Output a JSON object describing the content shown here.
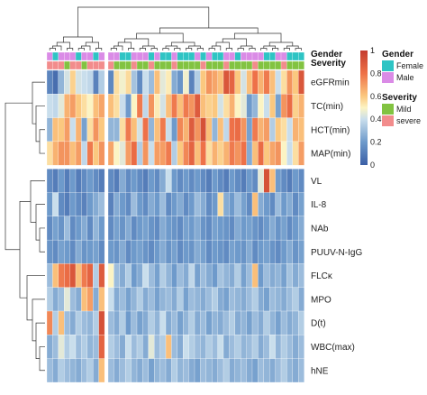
{
  "chart_data": {
    "type": "heatmap",
    "rows": [
      "eGFRmin",
      "TC(min)",
      "HCT(min)",
      "MAP(min)",
      "VL",
      "IL-8",
      "NAb",
      "PUUV-N-IgG",
      "FLCκ",
      "MPO",
      "D(t)",
      "WBC(max)",
      "hNE"
    ],
    "n_columns": 44,
    "column_split_after": 10,
    "row_split_after": 4,
    "value_range": [
      0,
      1
    ],
    "color_scale": {
      "stops": [
        0,
        0.2,
        0.4,
        0.5,
        0.6,
        0.8,
        1
      ],
      "colors": [
        "#3B5FA6",
        "#6E9ACB",
        "#C9DEEC",
        "#FCF4C4",
        "#FBC87F",
        "#EE7148",
        "#C43C2E"
      ],
      "tick_labels": [
        "0",
        "0.2",
        "0.4",
        "0.6",
        "0.8",
        "1"
      ],
      "tick_values": [
        0,
        0.2,
        0.4,
        0.6,
        0.8,
        1
      ]
    },
    "annotations": [
      {
        "name": "Gender",
        "levels": [
          {
            "label": "Female",
            "color": "#2EC4C4"
          },
          {
            "label": "Male",
            "color": "#DA8BE6"
          }
        ],
        "values": [
          "Male",
          "Female",
          "Male",
          "Male",
          "Male",
          "Female",
          "Male",
          "Male",
          "Female",
          "Male",
          "Male",
          "Male",
          "Female",
          "Female",
          "Male",
          "Male",
          "Male",
          "Female",
          "Male",
          "Female",
          "Female",
          "Male",
          "Female",
          "Female",
          "Female",
          "Male",
          "Female",
          "Male",
          "Female",
          "Female",
          "Male",
          "Male",
          "Female",
          "Male",
          "Male",
          "Male",
          "Male",
          "Female",
          "Female",
          "Male",
          "Male",
          "Female",
          "Female",
          "Female"
        ]
      },
      {
        "name": "Severity",
        "levels": [
          {
            "label": "Mild",
            "color": "#82C341"
          },
          {
            "label": "severe",
            "color": "#F28C8C"
          }
        ],
        "values": [
          "severe",
          "severe",
          "severe",
          "Mild",
          "severe",
          "severe",
          "Mild",
          "severe",
          "severe",
          "severe",
          "severe",
          "Mild",
          "Mild",
          "Mild",
          "severe",
          "Mild",
          "Mild",
          "severe",
          "Mild",
          "Mild",
          "Mild",
          "severe",
          "Mild",
          "Mild",
          "Mild",
          "Mild",
          "severe",
          "Mild",
          "Mild",
          "Mild",
          "severe",
          "Mild",
          "Mild",
          "Mild",
          "Mild",
          "severe",
          "Mild",
          "Mild",
          "Mild",
          "Mild",
          "severe",
          "Mild",
          "Mild",
          "Mild"
        ]
      }
    ],
    "matrix": [
      [
        0.13,
        0.05,
        0.28,
        0.42,
        0.58,
        0.42,
        0.4,
        0.38,
        0.12,
        0.35,
        0.14,
        0.55,
        0.48,
        0.56,
        0.32,
        0.15,
        0.4,
        0.3,
        0.62,
        0.45,
        0.52,
        0.25,
        0.18,
        0.48,
        0.12,
        0.35,
        0.6,
        0.72,
        0.68,
        0.62,
        0.9,
        0.85,
        0.6,
        0.42,
        0.62,
        0.8,
        0.65,
        0.78,
        0.62,
        0.4,
        0.55,
        0.72,
        0.6,
        0.9
      ],
      [
        0.4,
        0.38,
        0.45,
        0.65,
        0.7,
        0.6,
        0.55,
        0.5,
        0.62,
        0.68,
        0.62,
        0.55,
        0.4,
        0.2,
        0.5,
        0.78,
        0.38,
        0.72,
        0.52,
        0.42,
        0.62,
        0.78,
        0.62,
        0.78,
        0.72,
        0.88,
        0.62,
        0.58,
        0.6,
        0.42,
        0.55,
        0.65,
        0.5,
        0.45,
        0.2,
        0.28,
        0.5,
        0.4,
        0.6,
        0.22,
        0.72,
        0.82,
        0.58,
        0.65
      ],
      [
        0.28,
        0.62,
        0.6,
        0.7,
        0.4,
        0.65,
        0.22,
        0.55,
        0.72,
        0.6,
        0.28,
        0.28,
        0.55,
        0.78,
        0.62,
        0.42,
        0.8,
        0.28,
        0.62,
        0.78,
        0.4,
        0.2,
        0.75,
        0.65,
        0.88,
        0.72,
        0.92,
        0.62,
        0.28,
        0.62,
        0.38,
        0.8,
        0.82,
        0.72,
        0.22,
        0.78,
        0.65,
        0.7,
        0.35,
        0.6,
        0.55,
        0.4,
        0.65,
        0.62
      ],
      [
        0.55,
        0.65,
        0.72,
        0.72,
        0.62,
        0.7,
        0.38,
        0.78,
        0.6,
        0.72,
        0.68,
        0.5,
        0.45,
        0.7,
        0.82,
        0.35,
        0.72,
        0.4,
        0.7,
        0.7,
        0.78,
        0.35,
        0.6,
        0.75,
        0.85,
        0.62,
        0.8,
        0.55,
        0.65,
        0.58,
        0.65,
        0.78,
        0.72,
        0.8,
        0.25,
        0.62,
        0.82,
        0.6,
        0.68,
        0.72,
        0.5,
        0.4,
        0.55,
        0.7
      ],
      [
        0.15,
        0.1,
        0.2,
        0.1,
        0.2,
        0.1,
        0.15,
        0.2,
        0.15,
        0.1,
        0.15,
        0.1,
        0.25,
        0.15,
        0.2,
        0.15,
        0.1,
        0.2,
        0.15,
        0.25,
        0.4,
        0.2,
        0.15,
        0.2,
        0.15,
        0.2,
        0.15,
        0.1,
        0.2,
        0.15,
        0.1,
        0.2,
        0.15,
        0.1,
        0.2,
        0.15,
        0.45,
        0.92,
        0.62,
        0.2,
        0.15,
        0.1,
        0.2,
        0.15
      ],
      [
        0.2,
        0.4,
        0.15,
        0.1,
        0.2,
        0.15,
        0.12,
        0.2,
        0.25,
        0.3,
        0.12,
        0.25,
        0.2,
        0.15,
        0.3,
        0.2,
        0.15,
        0.25,
        0.2,
        0.3,
        0.15,
        0.2,
        0.25,
        0.15,
        0.2,
        0.3,
        0.25,
        0.15,
        0.2,
        0.55,
        0.25,
        0.2,
        0.3,
        0.22,
        0.15,
        0.62,
        0.25,
        0.2,
        0.15,
        0.3,
        0.2,
        0.25,
        0.15,
        0.22
      ],
      [
        0.15,
        0.22,
        0.18,
        0.3,
        0.15,
        0.2,
        0.25,
        0.15,
        0.28,
        0.2,
        0.15,
        0.22,
        0.18,
        0.25,
        0.15,
        0.2,
        0.22,
        0.18,
        0.15,
        0.25,
        0.2,
        0.18,
        0.15,
        0.22,
        0.2,
        0.25,
        0.18,
        0.15,
        0.22,
        0.2,
        0.18,
        0.15,
        0.25,
        0.2,
        0.22,
        0.18,
        0.15,
        0.2,
        0.25,
        0.18,
        0.22,
        0.15,
        0.2,
        0.25
      ],
      [
        0.18,
        0.15,
        0.22,
        0.2,
        0.15,
        0.25,
        0.18,
        0.2,
        0.22,
        0.15,
        0.2,
        0.18,
        0.25,
        0.15,
        0.2,
        0.22,
        0.18,
        0.15,
        0.2,
        0.25,
        0.18,
        0.22,
        0.15,
        0.2,
        0.18,
        0.25,
        0.22,
        0.15,
        0.2,
        0.18,
        0.15,
        0.22,
        0.2,
        0.18,
        0.25,
        0.15,
        0.2,
        0.22,
        0.18,
        0.15,
        0.2,
        0.25,
        0.18,
        0.22
      ],
      [
        0.3,
        0.62,
        0.78,
        0.82,
        0.9,
        0.62,
        0.78,
        0.85,
        0.35,
        0.88,
        0.5,
        0.3,
        0.25,
        0.35,
        0.2,
        0.25,
        0.4,
        0.3,
        0.22,
        0.35,
        0.28,
        0.2,
        0.3,
        0.25,
        0.38,
        0.22,
        0.3,
        0.25,
        0.2,
        0.32,
        0.28,
        0.25,
        0.35,
        0.22,
        0.3,
        0.62,
        0.2,
        0.3,
        0.25,
        0.28,
        0.22,
        0.32,
        0.25,
        0.3
      ],
      [
        0.35,
        0.25,
        0.3,
        0.45,
        0.3,
        0.25,
        0.62,
        0.7,
        0.25,
        0.62,
        0.4,
        0.25,
        0.3,
        0.22,
        0.28,
        0.35,
        0.25,
        0.3,
        0.22,
        0.28,
        0.3,
        0.25,
        0.35,
        0.22,
        0.3,
        0.28,
        0.25,
        0.3,
        0.35,
        0.25,
        0.22,
        0.3,
        0.28,
        0.25,
        0.3,
        0.35,
        0.25,
        0.22,
        0.3,
        0.28,
        0.25,
        0.3,
        0.35,
        0.25
      ],
      [
        0.75,
        0.35,
        0.62,
        0.3,
        0.25,
        0.35,
        0.3,
        0.28,
        0.35,
        0.92,
        0.3,
        0.25,
        0.35,
        0.2,
        0.3,
        0.22,
        0.25,
        0.35,
        0.28,
        0.4,
        0.25,
        0.3,
        0.22,
        0.28,
        0.35,
        0.25,
        0.3,
        0.22,
        0.28,
        0.25,
        0.3,
        0.35,
        0.25,
        0.28,
        0.22,
        0.3,
        0.25,
        0.35,
        0.28,
        0.22,
        0.3,
        0.25,
        0.28,
        0.35
      ],
      [
        0.25,
        0.3,
        0.45,
        0.35,
        0.4,
        0.3,
        0.35,
        0.28,
        0.3,
        0.85,
        0.35,
        0.3,
        0.25,
        0.4,
        0.3,
        0.35,
        0.25,
        0.45,
        0.3,
        0.35,
        0.62,
        0.3,
        0.25,
        0.4,
        0.35,
        0.3,
        0.28,
        0.35,
        0.3,
        0.4,
        0.25,
        0.3,
        0.35,
        0.28,
        0.3,
        0.35,
        0.25,
        0.3,
        0.4,
        0.28,
        0.35,
        0.3,
        0.25,
        0.3
      ],
      [
        0.3,
        0.25,
        0.35,
        0.3,
        0.28,
        0.25,
        0.3,
        0.35,
        0.25,
        0.62,
        0.3,
        0.25,
        0.3,
        0.35,
        0.28,
        0.25,
        0.3,
        0.22,
        0.28,
        0.3,
        0.25,
        0.35,
        0.28,
        0.3,
        0.25,
        0.22,
        0.3,
        0.28,
        0.25,
        0.3,
        0.35,
        0.25,
        0.28,
        0.3,
        0.25,
        0.22,
        0.3,
        0.28,
        0.25,
        0.3,
        0.35,
        0.28,
        0.25,
        0.3
      ]
    ]
  },
  "legend": {
    "gender_title": "Gender",
    "severity_title": "Severity"
  },
  "annotation_labels": {
    "gender": "Gender",
    "severity": "Severity"
  }
}
